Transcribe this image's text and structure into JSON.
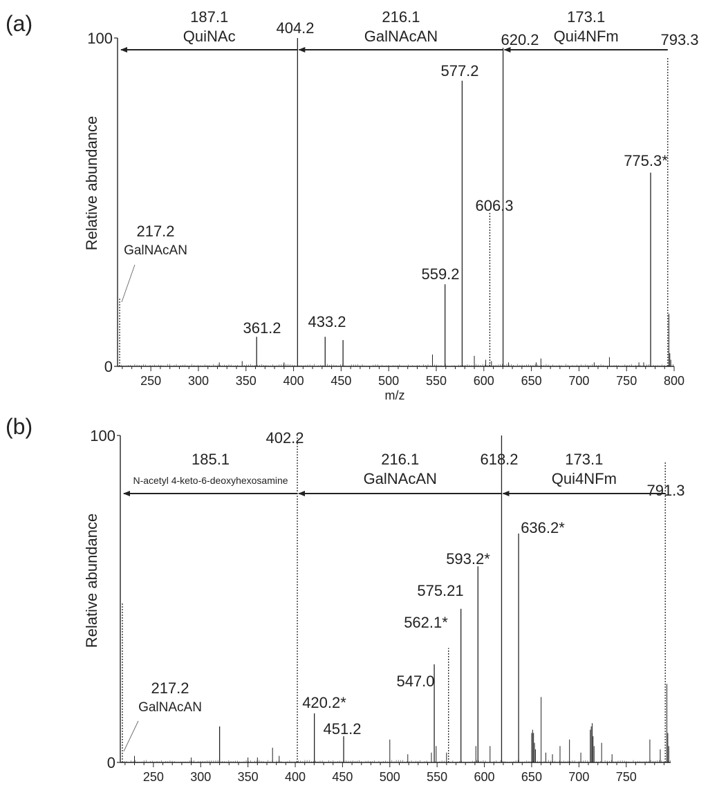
{
  "chart_data": [
    {
      "panel_label": "(a)",
      "type": "bar",
      "xlabel": "m/z",
      "ylabel": "Relative abundance",
      "xlim": [
        215,
        800
      ],
      "ylim": [
        0,
        100
      ],
      "xticks": [
        250,
        300,
        350,
        400,
        450,
        500,
        550,
        600,
        650,
        700,
        750,
        800
      ],
      "yticks": [
        0,
        100
      ],
      "major_peaks": [
        {
          "x": 217.2,
          "y": 21,
          "label": "217.2",
          "sublabel": "GalNAcAN",
          "dotted": true
        },
        {
          "x": 361.2,
          "y": 9,
          "label": "361.2"
        },
        {
          "x": 404.2,
          "y": 100,
          "label": "404.2"
        },
        {
          "x": 433.2,
          "y": 9,
          "label": "433.2"
        },
        {
          "x": 452.0,
          "y": 8,
          "label": ""
        },
        {
          "x": 559.2,
          "y": 25,
          "label": "559.2"
        },
        {
          "x": 577.2,
          "y": 87,
          "label": "577.2"
        },
        {
          "x": 606.3,
          "y": 47,
          "label": "606.3",
          "dotted": true
        },
        {
          "x": 620.2,
          "y": 97,
          "label": "620.2"
        },
        {
          "x": 775.3,
          "y": 59,
          "label": "775.3*"
        },
        {
          "x": 793.3,
          "y": 94,
          "label": "793.3",
          "dotted": true
        }
      ],
      "minor_peaks": [
        {
          "x": 322,
          "y": 1.2
        },
        {
          "x": 346,
          "y": 1.6
        },
        {
          "x": 390,
          "y": 1.2
        },
        {
          "x": 546,
          "y": 3.6
        },
        {
          "x": 590,
          "y": 3.2
        },
        {
          "x": 602,
          "y": 2
        },
        {
          "x": 608,
          "y": 1.6
        },
        {
          "x": 626,
          "y": 1.2
        },
        {
          "x": 655,
          "y": 1.2
        },
        {
          "x": 660,
          "y": 2.4
        },
        {
          "x": 716,
          "y": 1.2
        },
        {
          "x": 732,
          "y": 2.8
        },
        {
          "x": 763,
          "y": 1.2
        },
        {
          "x": 768,
          "y": 1.2
        },
        {
          "x": 794.5,
          "y": 16
        },
        {
          "x": 795.5,
          "y": 4
        },
        {
          "x": 796.5,
          "y": 2
        }
      ],
      "annotations": [
        {
          "mass": "187.1",
          "name": "QuiNAc",
          "from": 404.2,
          "to": 217.2
        },
        {
          "mass": "216.1",
          "name": "GalNAcAN",
          "from": 620.2,
          "to": 404.2
        },
        {
          "mass": "173.1",
          "name": "Qui4NFm",
          "from": 793.3,
          "to": 620.2
        }
      ]
    },
    {
      "panel_label": "(b)",
      "type": "bar",
      "ylabel": "Relative abundance",
      "xlim": [
        215,
        797
      ],
      "ylim": [
        0,
        100
      ],
      "xticks": [
        250,
        300,
        350,
        400,
        450,
        500,
        550,
        600,
        650,
        700,
        750
      ],
      "yticks": [
        0,
        100
      ],
      "major_peaks": [
        {
          "x": 217.2,
          "y": 49,
          "label": "217.2",
          "sublabel": "GalNAcAN",
          "dotted": true
        },
        {
          "x": 320.0,
          "y": 11,
          "label": ""
        },
        {
          "x": 402.2,
          "y": 100,
          "label": "402.2",
          "dotted": true
        },
        {
          "x": 420.2,
          "y": 15,
          "label": "420.2*"
        },
        {
          "x": 451.2,
          "y": 8,
          "label": "451.2"
        },
        {
          "x": 547.0,
          "y": 30,
          "label": "547.0"
        },
        {
          "x": 562.1,
          "y": 35,
          "label": "562.1*",
          "dotted": true
        },
        {
          "x": 575.21,
          "y": 47,
          "label": "575.21"
        },
        {
          "x": 593.2,
          "y": 60,
          "label": "593.2*"
        },
        {
          "x": 618.2,
          "y": 100,
          "label": "618.2"
        },
        {
          "x": 636.2,
          "y": 70,
          "label": "636.2*"
        },
        {
          "x": 791.3,
          "y": 92,
          "label": "791.3",
          "dotted": true
        }
      ],
      "minor_peaks": [
        {
          "x": 230,
          "y": 2
        },
        {
          "x": 290,
          "y": 1.5
        },
        {
          "x": 350,
          "y": 1.5
        },
        {
          "x": 360,
          "y": 1.5
        },
        {
          "x": 376,
          "y": 4.5
        },
        {
          "x": 383,
          "y": 2
        },
        {
          "x": 500,
          "y": 7
        },
        {
          "x": 519,
          "y": 2.5
        },
        {
          "x": 544,
          "y": 3
        },
        {
          "x": 549,
          "y": 5
        },
        {
          "x": 560,
          "y": 3
        },
        {
          "x": 591,
          "y": 5
        },
        {
          "x": 606,
          "y": 5
        },
        {
          "x": 650,
          "y": 9
        },
        {
          "x": 651,
          "y": 10
        },
        {
          "x": 652,
          "y": 9
        },
        {
          "x": 653,
          "y": 6
        },
        {
          "x": 654,
          "y": 4
        },
        {
          "x": 660,
          "y": 20
        },
        {
          "x": 665,
          "y": 3
        },
        {
          "x": 672,
          "y": 2.5
        },
        {
          "x": 680,
          "y": 5
        },
        {
          "x": 690,
          "y": 7
        },
        {
          "x": 702,
          "y": 3
        },
        {
          "x": 712,
          "y": 10
        },
        {
          "x": 713,
          "y": 11
        },
        {
          "x": 714,
          "y": 12
        },
        {
          "x": 715,
          "y": 8
        },
        {
          "x": 716,
          "y": 5
        },
        {
          "x": 724,
          "y": 6
        },
        {
          "x": 735,
          "y": 2.5
        },
        {
          "x": 775,
          "y": 7
        },
        {
          "x": 786,
          "y": 4
        },
        {
          "x": 793,
          "y": 24
        },
        {
          "x": 794,
          "y": 9
        },
        {
          "x": 795,
          "y": 5
        }
      ],
      "annotations": [
        {
          "mass": "185.1",
          "name": "N-acetyl 4-keto-6-deoxyhexosamine",
          "from": 402.2,
          "to": 217.2,
          "small": true
        },
        {
          "mass": "216.1",
          "name": "GalNAcAN",
          "from": 618.2,
          "to": 402.2
        },
        {
          "mass": "173.1",
          "name": "Qui4NFm",
          "from": 791.3,
          "to": 618.2
        }
      ]
    }
  ]
}
